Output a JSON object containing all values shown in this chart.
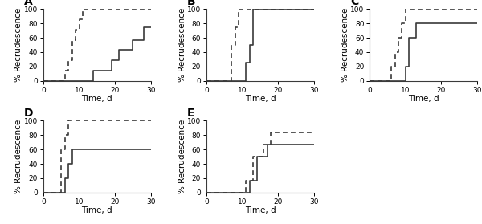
{
  "panels": [
    {
      "label": "A",
      "xlim": [
        0,
        30
      ],
      "ylim": [
        0,
        100
      ],
      "dashed": {
        "x": [
          0,
          6,
          6,
          7,
          7,
          8,
          8,
          9,
          9,
          10,
          10,
          11,
          11,
          30
        ],
        "y": [
          0,
          0,
          14,
          14,
          29,
          29,
          57,
          57,
          71,
          71,
          86,
          86,
          100,
          100
        ]
      },
      "solid": {
        "x": [
          0,
          14,
          14,
          19,
          19,
          21,
          21,
          25,
          25,
          28,
          28,
          30
        ],
        "y": [
          0,
          0,
          14,
          14,
          29,
          29,
          43,
          43,
          57,
          57,
          75,
          75
        ]
      }
    },
    {
      "label": "B",
      "xlim": [
        0,
        30
      ],
      "ylim": [
        0,
        100
      ],
      "dashed": {
        "x": [
          0,
          7,
          7,
          8,
          8,
          9,
          9,
          11,
          11,
          30
        ],
        "y": [
          0,
          0,
          50,
          50,
          75,
          75,
          100,
          100,
          100,
          100
        ]
      },
      "solid": {
        "x": [
          0,
          11,
          11,
          12,
          12,
          13,
          13,
          15,
          15,
          30
        ],
        "y": [
          0,
          0,
          25,
          25,
          50,
          50,
          100,
          100,
          100,
          100
        ]
      }
    },
    {
      "label": "C",
      "xlim": [
        0,
        30
      ],
      "ylim": [
        0,
        100
      ],
      "dashed": {
        "x": [
          0,
          6,
          6,
          7,
          7,
          8,
          8,
          9,
          9,
          10,
          10,
          30
        ],
        "y": [
          0,
          0,
          20,
          20,
          40,
          40,
          60,
          60,
          80,
          80,
          100,
          100
        ]
      },
      "solid": {
        "x": [
          0,
          10,
          10,
          11,
          11,
          13,
          13,
          20,
          20,
          30
        ],
        "y": [
          0,
          0,
          20,
          20,
          60,
          60,
          80,
          80,
          80,
          80
        ]
      }
    },
    {
      "label": "D",
      "xlim": [
        0,
        30
      ],
      "ylim": [
        0,
        100
      ],
      "dashed": {
        "x": [
          0,
          5,
          5,
          6,
          6,
          7,
          7,
          30
        ],
        "y": [
          0,
          0,
          60,
          60,
          80,
          80,
          100,
          100
        ]
      },
      "solid": {
        "x": [
          0,
          6,
          6,
          7,
          7,
          8,
          8,
          10,
          10,
          30
        ],
        "y": [
          0,
          0,
          20,
          20,
          40,
          40,
          60,
          60,
          60,
          60
        ]
      }
    },
    {
      "label": "E",
      "xlim": [
        0,
        30
      ],
      "ylim": [
        0,
        100
      ],
      "dashed": {
        "x": [
          0,
          11,
          11,
          13,
          13,
          16,
          16,
          18,
          18,
          30
        ],
        "y": [
          0,
          0,
          17,
          17,
          50,
          50,
          67,
          67,
          83,
          83
        ]
      },
      "solid": {
        "x": [
          0,
          12,
          12,
          14,
          14,
          17,
          17,
          30
        ],
        "y": [
          0,
          0,
          17,
          17,
          50,
          50,
          67,
          67
        ]
      }
    }
  ],
  "xlabel": "Time, d",
  "ylabel": "% Recrudescence",
  "line_color": "#3a3a3a",
  "linewidth": 1.2,
  "tick_fontsize": 6.5,
  "label_fontsize": 7.5,
  "panel_label_fontsize": 10,
  "background_color": "#ffffff",
  "xticks": [
    0,
    10,
    20,
    30
  ],
  "yticks": [
    0,
    20,
    40,
    60,
    80,
    100
  ]
}
